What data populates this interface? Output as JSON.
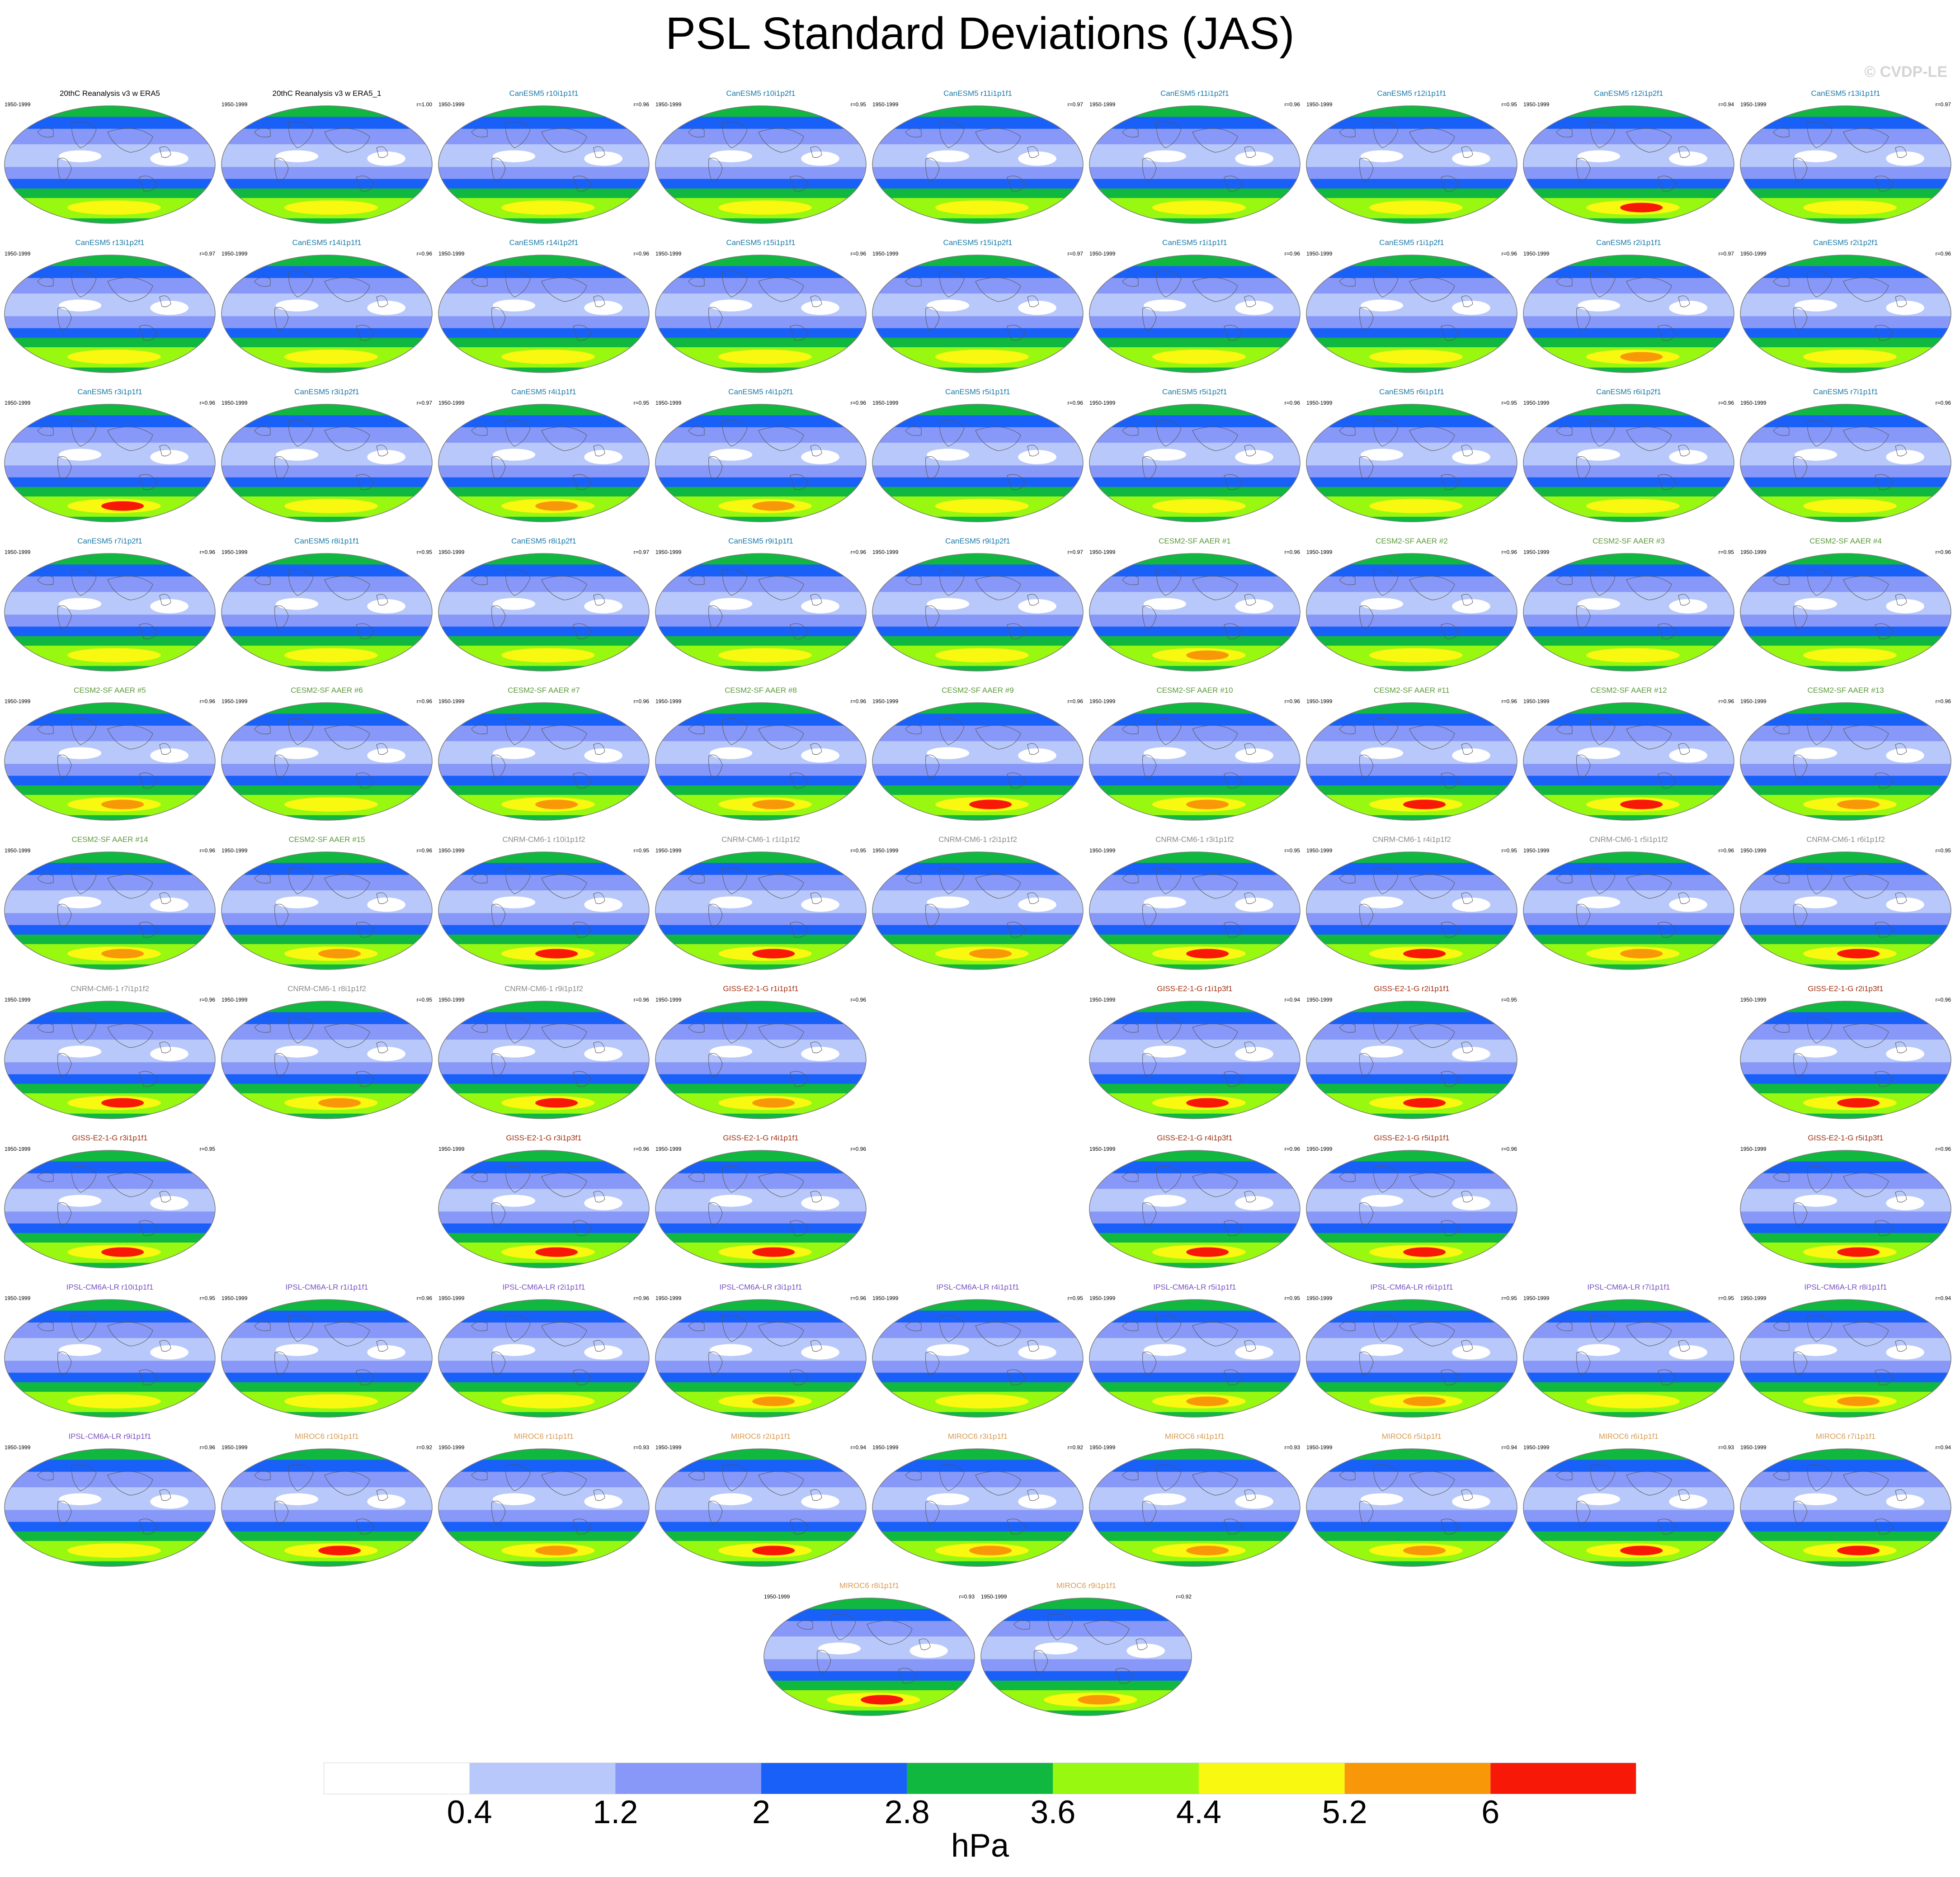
{
  "title": "PSL Standard Deviations (JAS)",
  "credit": "© CVDP-LE",
  "units": "hPa",
  "colors": {
    "model_label": {
      "reference": "#000000",
      "CanESM5": "#1a7aa8",
      "CESM2": "#5a9a3a",
      "CNRM": "#8a8a8a",
      "GISS": "#a03010",
      "IPSL": "#7a50c0",
      "MIROC": "#d89a50"
    },
    "land_outline": "#555555"
  },
  "chart_data": {
    "type": "map-grid",
    "title": "PSL Standard Deviations (JAS)",
    "colorbar": {
      "units": "hPa",
      "tick_labels": [
        "0.4",
        "1.2",
        "2",
        "2.8",
        "3.6",
        "4.4",
        "5.2",
        "6"
      ],
      "levels": [
        0.4,
        1.2,
        2,
        2.8,
        3.6,
        4.4,
        5.2,
        6
      ],
      "colors": [
        "#ffffff",
        "#b8c8fa",
        "#8898f8",
        "#1860f8",
        "#10b840",
        "#98f810",
        "#f8f810",
        "#f89808",
        "#f81808"
      ]
    },
    "rows": [
      [
        {
          "label": "20thC Reanalysis v3 w ERA5",
          "years": "1950-1999",
          "r": "",
          "group": "reference",
          "south_max": 4.4
        },
        {
          "label": "20thC Reanalysis v3 w ERA5_1",
          "years": "1950-1999",
          "r": "r=1.00",
          "group": "reference",
          "south_max": 4.4
        },
        {
          "label": "CanESM5 r10i1p1f1",
          "years": "1950-1999",
          "r": "r=0.96",
          "group": "CanESM5",
          "south_max": 4.4
        },
        {
          "label": "CanESM5 r10i1p2f1",
          "years": "1950-1999",
          "r": "r=0.95",
          "group": "CanESM5",
          "south_max": 4.4
        },
        {
          "label": "CanESM5 r11i1p1f1",
          "years": "1950-1999",
          "r": "r=0.97",
          "group": "CanESM5",
          "south_max": 4.4
        },
        {
          "label": "CanESM5 r11i1p2f1",
          "years": "1950-1999",
          "r": "r=0.96",
          "group": "CanESM5",
          "south_max": 4.4
        },
        {
          "label": "CanESM5 r12i1p1f1",
          "years": "1950-1999",
          "r": "r=0.95",
          "group": "CanESM5",
          "south_max": 4.4
        },
        {
          "label": "CanESM5 r12i1p2f1",
          "years": "1950-1999",
          "r": "r=0.94",
          "group": "CanESM5",
          "south_max": 6
        },
        {
          "label": "CanESM5 r13i1p1f1",
          "years": "1950-1999",
          "r": "r=0.97",
          "group": "CanESM5",
          "south_max": 4.4
        }
      ],
      [
        {
          "label": "CanESM5 r13i1p2f1",
          "years": "1950-1999",
          "r": "r=0.97",
          "group": "CanESM5",
          "south_max": 4.4
        },
        {
          "label": "CanESM5 r14i1p1f1",
          "years": "1950-1999",
          "r": "r=0.96",
          "group": "CanESM5",
          "south_max": 4.4
        },
        {
          "label": "CanESM5 r14i1p2f1",
          "years": "1950-1999",
          "r": "r=0.96",
          "group": "CanESM5",
          "south_max": 4.4
        },
        {
          "label": "CanESM5 r15i1p1f1",
          "years": "1950-1999",
          "r": "r=0.96",
          "group": "CanESM5",
          "south_max": 4.4
        },
        {
          "label": "CanESM5 r15i1p2f1",
          "years": "1950-1999",
          "r": "r=0.97",
          "group": "CanESM5",
          "south_max": 4.4
        },
        {
          "label": "CanESM5 r1i1p1f1",
          "years": "1950-1999",
          "r": "r=0.96",
          "group": "CanESM5",
          "south_max": 4.4
        },
        {
          "label": "CanESM5 r1i1p2f1",
          "years": "1950-1999",
          "r": "r=0.96",
          "group": "CanESM5",
          "south_max": 4.4
        },
        {
          "label": "CanESM5 r2i1p1f1",
          "years": "1950-1999",
          "r": "r=0.97",
          "group": "CanESM5",
          "south_max": 5.2
        },
        {
          "label": "CanESM5 r2i1p2f1",
          "years": "1950-1999",
          "r": "r=0.96",
          "group": "CanESM5",
          "south_max": 4.4
        }
      ],
      [
        {
          "label": "CanESM5 r3i1p1f1",
          "years": "1950-1999",
          "r": "r=0.96",
          "group": "CanESM5",
          "south_max": 6
        },
        {
          "label": "CanESM5 r3i1p2f1",
          "years": "1950-1999",
          "r": "r=0.97",
          "group": "CanESM5",
          "south_max": 4.4
        },
        {
          "label": "CanESM5 r4i1p1f1",
          "years": "1950-1999",
          "r": "r=0.95",
          "group": "CanESM5",
          "south_max": 5.2
        },
        {
          "label": "CanESM5 r4i1p2f1",
          "years": "1950-1999",
          "r": "r=0.96",
          "group": "CanESM5",
          "south_max": 5.2
        },
        {
          "label": "CanESM5 r5i1p1f1",
          "years": "1950-1999",
          "r": "r=0.96",
          "group": "CanESM5",
          "south_max": 4.4
        },
        {
          "label": "CanESM5 r5i1p2f1",
          "years": "1950-1999",
          "r": "r=0.96",
          "group": "CanESM5",
          "south_max": 4.4
        },
        {
          "label": "CanESM5 r6i1p1f1",
          "years": "1950-1999",
          "r": "r=0.95",
          "group": "CanESM5",
          "south_max": 4.4
        },
        {
          "label": "CanESM5 r6i1p2f1",
          "years": "1950-1999",
          "r": "r=0.96",
          "group": "CanESM5",
          "south_max": 4.4
        },
        {
          "label": "CanESM5 r7i1p1f1",
          "years": "1950-1999",
          "r": "r=0.96",
          "group": "CanESM5",
          "south_max": 4.4
        }
      ],
      [
        {
          "label": "CanESM5 r7i1p2f1",
          "years": "1950-1999",
          "r": "r=0.96",
          "group": "CanESM5",
          "south_max": 4.4
        },
        {
          "label": "CanESM5 r8i1p1f1",
          "years": "1950-1999",
          "r": "r=0.95",
          "group": "CanESM5",
          "south_max": 4.4
        },
        {
          "label": "CanESM5 r8i1p2f1",
          "years": "1950-1999",
          "r": "r=0.97",
          "group": "CanESM5",
          "south_max": 4.4
        },
        {
          "label": "CanESM5 r9i1p1f1",
          "years": "1950-1999",
          "r": "r=0.96",
          "group": "CanESM5",
          "south_max": 4.4
        },
        {
          "label": "CanESM5 r9i1p2f1",
          "years": "1950-1999",
          "r": "r=0.97",
          "group": "CanESM5",
          "south_max": 4.4
        },
        {
          "label": "CESM2-SF AAER #1",
          "years": "1950-1999",
          "r": "r=0.96",
          "group": "CESM2",
          "south_max": 5.2
        },
        {
          "label": "CESM2-SF AAER #2",
          "years": "1950-1999",
          "r": "r=0.96",
          "group": "CESM2",
          "south_max": 4.4
        },
        {
          "label": "CESM2-SF AAER #3",
          "years": "1950-1999",
          "r": "r=0.95",
          "group": "CESM2",
          "south_max": 4.4
        },
        {
          "label": "CESM2-SF AAER #4",
          "years": "1950-1999",
          "r": "r=0.96",
          "group": "CESM2",
          "south_max": 4.4
        }
      ],
      [
        {
          "label": "CESM2-SF AAER #5",
          "years": "1950-1999",
          "r": "r=0.96",
          "group": "CESM2",
          "south_max": 5.2
        },
        {
          "label": "CESM2-SF AAER #6",
          "years": "1950-1999",
          "r": "r=0.96",
          "group": "CESM2",
          "south_max": 4.4
        },
        {
          "label": "CESM2-SF AAER #7",
          "years": "1950-1999",
          "r": "r=0.96",
          "group": "CESM2",
          "south_max": 5.2
        },
        {
          "label": "CESM2-SF AAER #8",
          "years": "1950-1999",
          "r": "r=0.96",
          "group": "CESM2",
          "south_max": 5.2
        },
        {
          "label": "CESM2-SF AAER #9",
          "years": "1950-1999",
          "r": "r=0.96",
          "group": "CESM2",
          "south_max": 6
        },
        {
          "label": "CESM2-SF AAER #10",
          "years": "1950-1999",
          "r": "r=0.96",
          "group": "CESM2",
          "south_max": 5.2
        },
        {
          "label": "CESM2-SF AAER #11",
          "years": "1950-1999",
          "r": "r=0.96",
          "group": "CESM2",
          "south_max": 6
        },
        {
          "label": "CESM2-SF AAER #12",
          "years": "1950-1999",
          "r": "r=0.96",
          "group": "CESM2",
          "south_max": 6
        },
        {
          "label": "CESM2-SF AAER #13",
          "years": "1950-1999",
          "r": "r=0.96",
          "group": "CESM2",
          "south_max": 5.2
        }
      ],
      [
        {
          "label": "CESM2-SF AAER #14",
          "years": "1950-1999",
          "r": "r=0.96",
          "group": "CESM2",
          "south_max": 5.2
        },
        {
          "label": "CESM2-SF AAER #15",
          "years": "1950-1999",
          "r": "r=0.96",
          "group": "CESM2",
          "south_max": 5.2
        },
        {
          "label": "CNRM-CM6-1 r10i1p1f2",
          "years": "1950-1999",
          "r": "r=0.95",
          "group": "CNRM",
          "south_max": 6
        },
        {
          "label": "CNRM-CM6-1 r1i1p1f2",
          "years": "1950-1999",
          "r": "r=0.95",
          "group": "CNRM",
          "south_max": 6
        },
        {
          "label": "CNRM-CM6-1 r2i1p1f2",
          "years": "1950-1999",
          "r": "",
          "group": "CNRM",
          "south_max": 5.2
        },
        {
          "label": "CNRM-CM6-1 r3i1p1f2",
          "years": "1950-1999",
          "r": "r=0.95",
          "group": "CNRM",
          "south_max": 6
        },
        {
          "label": "CNRM-CM6-1 r4i1p1f2",
          "years": "1950-1999",
          "r": "r=0.95",
          "group": "CNRM",
          "south_max": 6
        },
        {
          "label": "CNRM-CM6-1 r5i1p1f2",
          "years": "1950-1999",
          "r": "r=0.96",
          "group": "CNRM",
          "south_max": 5.2
        },
        {
          "label": "CNRM-CM6-1 r6i1p1f2",
          "years": "1950-1999",
          "r": "r=0.95",
          "group": "CNRM",
          "south_max": 6
        }
      ],
      [
        {
          "label": "CNRM-CM6-1 r7i1p1f2",
          "years": "1950-1999",
          "r": "r=0.96",
          "group": "CNRM",
          "south_max": 6
        },
        {
          "label": "CNRM-CM6-1 r8i1p1f2",
          "years": "1950-1999",
          "r": "r=0.95",
          "group": "CNRM",
          "south_max": 5.2
        },
        {
          "label": "CNRM-CM6-1 r9i1p1f2",
          "years": "1950-1999",
          "r": "r=0.96",
          "group": "CNRM",
          "south_max": 6
        },
        {
          "label": "GISS-E2-1-G r1i1p1f1",
          "years": "1950-1999",
          "r": "r=0.96",
          "group": "GISS",
          "south_max": 5.2
        },
        null,
        {
          "label": "GISS-E2-1-G r1i1p3f1",
          "years": "1950-1999",
          "r": "r=0.94",
          "group": "GISS",
          "south_max": 6
        },
        {
          "label": "GISS-E2-1-G r2i1p1f1",
          "years": "1950-1999",
          "r": "r=0.95",
          "group": "GISS",
          "south_max": 6
        },
        null,
        {
          "label": "GISS-E2-1-G r2i1p3f1",
          "years": "1950-1999",
          "r": "r=0.96",
          "group": "GISS",
          "south_max": 6
        }
      ],
      [
        {
          "label": "GISS-E2-1-G r3i1p1f1",
          "years": "1950-1999",
          "r": "r=0.95",
          "group": "GISS",
          "south_max": 6
        },
        null,
        {
          "label": "GISS-E2-1-G r3i1p3f1",
          "years": "1950-1999",
          "r": "r=0.96",
          "group": "GISS",
          "south_max": 6
        },
        {
          "label": "GISS-E2-1-G r4i1p1f1",
          "years": "1950-1999",
          "r": "r=0.96",
          "group": "GISS",
          "south_max": 6
        },
        null,
        {
          "label": "GISS-E2-1-G r4i1p3f1",
          "years": "1950-1999",
          "r": "r=0.96",
          "group": "GISS",
          "south_max": 6
        },
        {
          "label": "GISS-E2-1-G r5i1p1f1",
          "years": "1950-1999",
          "r": "r=0.96",
          "group": "GISS",
          "south_max": 6
        },
        null,
        {
          "label": "GISS-E2-1-G r5i1p3f1",
          "years": "1950-1999",
          "r": "r=0.96",
          "group": "GISS",
          "south_max": 6
        }
      ],
      [
        {
          "label": "IPSL-CM6A-LR r10i1p1f1",
          "years": "1950-1999",
          "r": "r=0.95",
          "group": "IPSL",
          "south_max": 4.4
        },
        {
          "label": "IPSL-CM6A-LR r1i1p1f1",
          "years": "1950-1999",
          "r": "r=0.96",
          "group": "IPSL",
          "south_max": 4.4
        },
        {
          "label": "IPSL-CM6A-LR r2i1p1f1",
          "years": "1950-1999",
          "r": "r=0.96",
          "group": "IPSL",
          "south_max": 4.4
        },
        {
          "label": "IPSL-CM6A-LR r3i1p1f1",
          "years": "1950-1999",
          "r": "r=0.96",
          "group": "IPSL",
          "south_max": 5.2
        },
        {
          "label": "IPSL-CM6A-LR r4i1p1f1",
          "years": "1950-1999",
          "r": "r=0.95",
          "group": "IPSL",
          "south_max": 4.4
        },
        {
          "label": "IPSL-CM6A-LR r5i1p1f1",
          "years": "1950-1999",
          "r": "r=0.95",
          "group": "IPSL",
          "south_max": 5.2
        },
        {
          "label": "IPSL-CM6A-LR r6i1p1f1",
          "years": "1950-1999",
          "r": "r=0.95",
          "group": "IPSL",
          "south_max": 5.2
        },
        {
          "label": "IPSL-CM6A-LR r7i1p1f1",
          "years": "1950-1999",
          "r": "r=0.95",
          "group": "IPSL",
          "south_max": 4.4
        },
        {
          "label": "IPSL-CM6A-LR r8i1p1f1",
          "years": "1950-1999",
          "r": "r=0.94",
          "group": "IPSL",
          "south_max": 5.2
        }
      ],
      [
        {
          "label": "IPSL-CM6A-LR r9i1p1f1",
          "years": "1950-1999",
          "r": "r=0.96",
          "group": "IPSL",
          "south_max": 4.4
        },
        {
          "label": "MIROC6 r10i1p1f1",
          "years": "1950-1999",
          "r": "r=0.92",
          "group": "MIROC",
          "south_max": 6
        },
        {
          "label": "MIROC6 r1i1p1f1",
          "years": "1950-1999",
          "r": "r=0.93",
          "group": "MIROC",
          "south_max": 5.2
        },
        {
          "label": "MIROC6 r2i1p1f1",
          "years": "1950-1999",
          "r": "r=0.94",
          "group": "MIROC",
          "south_max": 6
        },
        {
          "label": "MIROC6 r3i1p1f1",
          "years": "1950-1999",
          "r": "r=0.92",
          "group": "MIROC",
          "south_max": 5.2
        },
        {
          "label": "MIROC6 r4i1p1f1",
          "years": "1950-1999",
          "r": "r=0.93",
          "group": "MIROC",
          "south_max": 5.2
        },
        {
          "label": "MIROC6 r5i1p1f1",
          "years": "1950-1999",
          "r": "r=0.94",
          "group": "MIROC",
          "south_max": 5.2
        },
        {
          "label": "MIROC6 r6i1p1f1",
          "years": "1950-1999",
          "r": "r=0.93",
          "group": "MIROC",
          "south_max": 6
        },
        {
          "label": "MIROC6 r7i1p1f1",
          "years": "1950-1999",
          "r": "r=0.94",
          "group": "MIROC",
          "south_max": 6
        }
      ],
      [
        null,
        null,
        null,
        {
          "label": "MIROC6 r8i1p1f1",
          "years": "1950-1999",
          "r": "r=0.93",
          "group": "MIROC",
          "south_max": 6
        },
        {
          "label": "MIROC6 r9i1p1f1",
          "years": "1950-1999",
          "r": "r=0.92",
          "group": "MIROC",
          "south_max": 5.2
        },
        null,
        null,
        null,
        null
      ]
    ]
  }
}
